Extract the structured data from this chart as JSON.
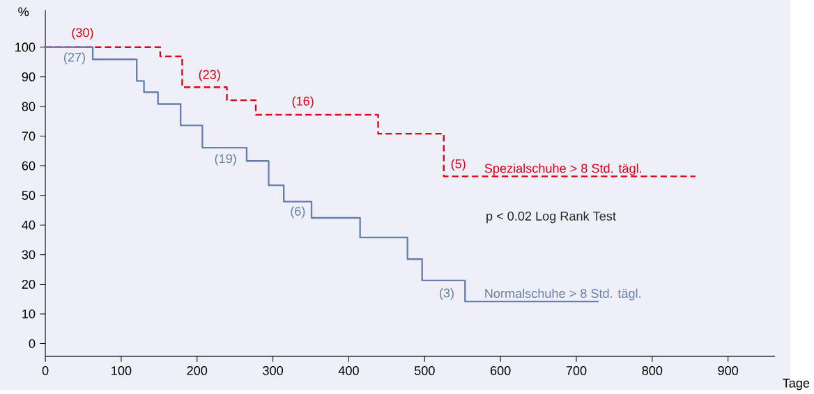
{
  "chart_data": {
    "type": "step",
    "xlabel": "Tage",
    "ylabel": "%",
    "xlim": [
      0,
      962
    ],
    "ylim": [
      -4.3,
      112.5
    ],
    "xticks": [
      0,
      100,
      200,
      300,
      400,
      500,
      600,
      700,
      800,
      900
    ],
    "yticks": [
      0,
      10,
      20,
      30,
      40,
      50,
      60,
      70,
      80,
      90,
      100
    ],
    "grid": false,
    "legend": false,
    "series": [
      {
        "name": "Spezialschuhe > 8 Std. tägl.",
        "color": "#e2001a",
        "line_style": "dashed",
        "x": [
          0,
          151.5,
          180.4,
          239.3,
          277.4,
          438.7,
          525.3,
          856.9
        ],
        "values": [
          100,
          96.9,
          86.5,
          82.1,
          77.2,
          70.8,
          56.4,
          56.4
        ]
      },
      {
        "name": "Normalschuhe > 8 Std. tägl.",
        "color": "#6580b0",
        "line_style": "solid",
        "x": [
          0,
          62.5,
          120.5,
          130,
          148.5,
          178.3,
          207,
          265.4,
          294.4,
          314.3,
          350.9,
          414.9,
          477.4,
          496.7,
          553.3,
          729.5
        ],
        "values": [
          100,
          95.9,
          88.6,
          84.8,
          80.8,
          73.6,
          66.1,
          61.6,
          53.4,
          47.9,
          42.4,
          35.8,
          28.5,
          21.3,
          14.2,
          14.2
        ]
      }
    ],
    "annotations": [
      "(30)",
      "(27)",
      "(23)",
      "(16)",
      "(19)",
      "(6)",
      "(5)",
      "(3)",
      "p < 0.02 Log Rank Test"
    ]
  }
}
